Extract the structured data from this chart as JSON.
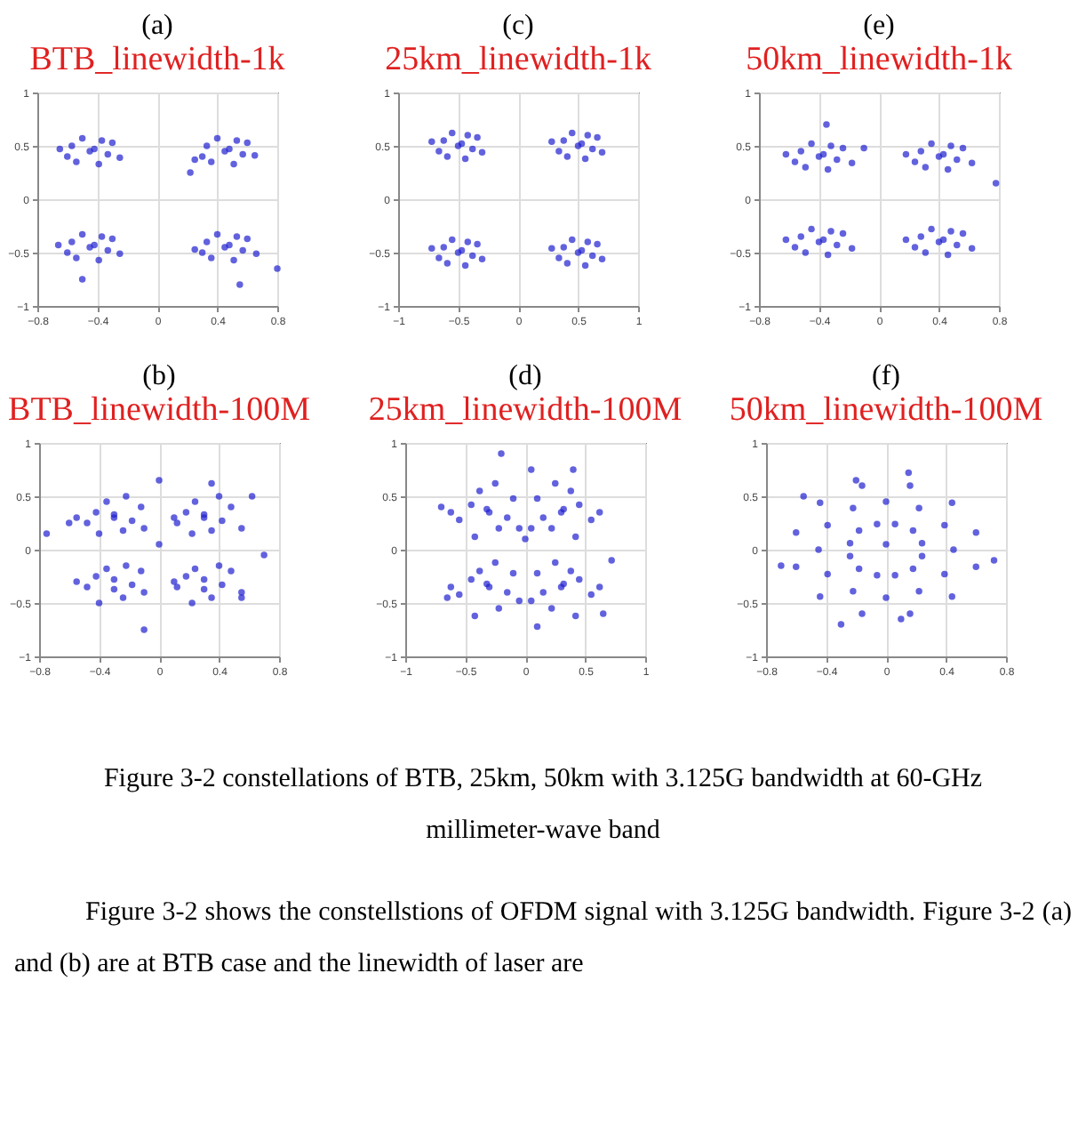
{
  "chart_data": [
    {
      "type": "scatter",
      "title": "(a)",
      "subtitle": "BTB_linewidth-1k",
      "color": "#1f1fd0",
      "marker": "circle",
      "grid": true,
      "xlim": [
        -0.8,
        0.8
      ],
      "ylim": [
        -1,
        1
      ],
      "xticks": [
        -0.8,
        -0.4,
        0,
        0.4,
        0.8
      ],
      "yticks": [
        -1,
        -0.5,
        0,
        0.5,
        1
      ],
      "x": [
        -0.45,
        -0.57,
        -0.33,
        -0.5,
        -0.39,
        -0.6,
        -0.3,
        -0.37,
        -0.54,
        -0.42,
        -0.65,
        -0.25,
        0.45,
        0.33,
        0.57,
        0.4,
        0.51,
        0.3,
        0.6,
        0.53,
        0.36,
        0.48,
        0.25,
        0.65,
        0.22,
        -0.45,
        -0.57,
        -0.33,
        -0.5,
        -0.39,
        -0.6,
        -0.3,
        -0.37,
        -0.54,
        -0.42,
        -0.66,
        -0.25,
        -0.5,
        0.45,
        0.33,
        0.57,
        0.4,
        0.51,
        0.3,
        0.6,
        0.53,
        0.36,
        0.48,
        0.25,
        0.66,
        0.55,
        0.8
      ],
      "values": [
        0.45,
        0.5,
        0.42,
        0.57,
        0.33,
        0.4,
        0.53,
        0.55,
        0.35,
        0.47,
        0.47,
        0.39,
        0.45,
        0.5,
        0.42,
        0.57,
        0.33,
        0.4,
        0.53,
        0.55,
        0.35,
        0.47,
        0.37,
        0.41,
        0.25,
        -0.45,
        -0.4,
        -0.48,
        -0.33,
        -0.57,
        -0.5,
        -0.37,
        -0.35,
        -0.55,
        -0.43,
        -0.43,
        -0.51,
        -0.75,
        -0.45,
        -0.4,
        -0.48,
        -0.33,
        -0.57,
        -0.5,
        -0.37,
        -0.35,
        -0.55,
        -0.43,
        -0.47,
        -0.51,
        -0.8,
        -0.65
      ],
      "annotations": [
        "Figure 3-2 constellations of BTB, 25km, 50km with 3.125G bandwidth at 60-GHz millimeter-wave band",
        "Figure 3-2 shows the constellstions of OFDM signal with 3.125G bandwidth. Figure 3-2 (a) and (b) are at BTB case and the linewidth of laser are"
      ]
    },
    {
      "type": "scatter",
      "title": "(c)",
      "subtitle": "25km_linewidth-1k",
      "color": "#1f1fd0",
      "marker": "circle",
      "grid": true,
      "xlim": [
        -1,
        1
      ],
      "ylim": [
        -1,
        1
      ],
      "xticks": [
        -1,
        -0.5,
        0,
        0.5,
        1
      ],
      "yticks": [
        -1,
        -0.5,
        0,
        0.5,
        1
      ],
      "x": [
        -0.5,
        -0.62,
        -0.38,
        -0.55,
        -0.44,
        -0.66,
        -0.34,
        -0.42,
        -0.59,
        -0.47,
        -0.72,
        -0.3,
        0.5,
        0.38,
        0.62,
        0.45,
        0.56,
        0.34,
        0.66,
        0.58,
        0.41,
        0.53,
        0.28,
        0.7,
        -0.5,
        -0.62,
        -0.38,
        -0.55,
        -0.44,
        -0.66,
        -0.34,
        -0.42,
        -0.59,
        -0.47,
        -0.72,
        -0.3,
        0.5,
        0.38,
        0.62,
        0.45,
        0.56,
        0.34,
        0.66,
        0.58,
        0.41,
        0.53,
        0.28,
        0.7
      ],
      "values": [
        0.5,
        0.55,
        0.47,
        0.62,
        0.38,
        0.45,
        0.58,
        0.6,
        0.4,
        0.52,
        0.54,
        0.44,
        0.5,
        0.55,
        0.47,
        0.62,
        0.38,
        0.45,
        0.58,
        0.6,
        0.4,
        0.52,
        0.54,
        0.44,
        -0.5,
        -0.45,
        -0.53,
        -0.38,
        -0.62,
        -0.55,
        -0.42,
        -0.4,
        -0.6,
        -0.48,
        -0.46,
        -0.56,
        -0.5,
        -0.45,
        -0.53,
        -0.38,
        -0.62,
        -0.55,
        -0.42,
        -0.4,
        -0.6,
        -0.48,
        -0.46,
        -0.56
      ]
    },
    {
      "type": "scatter",
      "title": "(e)",
      "subtitle": "50km_linewidth-1k",
      "color": "#1f1fd0",
      "marker": "circle",
      "grid": true,
      "xlim": [
        -0.8,
        0.8
      ],
      "ylim": [
        -1,
        1
      ],
      "xticks": [
        -0.8,
        -0.4,
        0,
        0.4,
        0.8
      ],
      "yticks": [
        -1,
        -0.5,
        0,
        0.5,
        1
      ],
      "x": [
        -0.4,
        -0.52,
        -0.28,
        -0.45,
        -0.34,
        -0.56,
        -0.24,
        -0.32,
        -0.49,
        -0.37,
        -0.62,
        -0.18,
        -0.1,
        -0.35,
        0.4,
        0.28,
        0.52,
        0.35,
        0.46,
        0.24,
        0.56,
        0.48,
        0.31,
        0.43,
        0.18,
        0.62,
        0.78,
        -0.4,
        -0.52,
        -0.28,
        -0.45,
        -0.34,
        -0.56,
        -0.24,
        -0.32,
        -0.49,
        -0.37,
        -0.62,
        -0.18,
        0.4,
        0.28,
        0.52,
        0.35,
        0.46,
        0.24,
        0.56,
        0.48,
        0.31,
        0.43,
        0.18,
        0.62
      ],
      "values": [
        0.4,
        0.45,
        0.37,
        0.52,
        0.28,
        0.35,
        0.48,
        0.5,
        0.3,
        0.42,
        0.42,
        0.34,
        0.48,
        0.7,
        0.4,
        0.45,
        0.37,
        0.52,
        0.28,
        0.35,
        0.48,
        0.5,
        0.3,
        0.42,
        0.42,
        0.34,
        0.15,
        -0.4,
        -0.35,
        -0.43,
        -0.28,
        -0.52,
        -0.45,
        -0.32,
        -0.3,
        -0.5,
        -0.38,
        -0.38,
        -0.46,
        -0.4,
        -0.35,
        -0.43,
        -0.28,
        -0.52,
        -0.45,
        -0.32,
        -0.3,
        -0.5,
        -0.38,
        -0.38,
        -0.46
      ]
    },
    {
      "type": "scatter",
      "title": "(b)",
      "subtitle": "BTB_linewidth-100M",
      "color": "#1f1fd0",
      "marker": "circle",
      "grid": true,
      "xlim": [
        -0.8,
        0.8
      ],
      "ylim": [
        -1,
        1
      ],
      "xticks": [
        -0.8,
        -0.4,
        0,
        0.4,
        0.8
      ],
      "yticks": [
        -1,
        -0.5,
        0,
        0.5,
        1
      ],
      "x": [
        -0.3,
        -0.42,
        -0.18,
        -0.35,
        -0.24,
        -0.48,
        -0.12,
        -0.22,
        -0.4,
        -0.3,
        -0.55,
        -0.1,
        0.3,
        0.18,
        0.42,
        0.24,
        0.35,
        0.12,
        0.48,
        0.4,
        0.22,
        0.3,
        0.1,
        0.55,
        -0.3,
        -0.42,
        -0.18,
        -0.35,
        -0.24,
        -0.48,
        -0.12,
        -0.22,
        -0.4,
        -0.3,
        -0.55,
        -0.1,
        0.3,
        0.18,
        0.42,
        0.24,
        0.35,
        0.12,
        0.48,
        0.4,
        0.22,
        0.3,
        0.1,
        0.55,
        0,
        0.35,
        -0.6,
        0.7,
        -0.1,
        0.55,
        -0.75,
        0,
        0.62
      ],
      "values": [
        0.3,
        0.35,
        0.27,
        0.45,
        0.18,
        0.25,
        0.4,
        0.5,
        0.15,
        0.33,
        0.3,
        0.2,
        0.3,
        0.35,
        0.27,
        0.45,
        0.18,
        0.25,
        0.4,
        0.5,
        0.15,
        0.33,
        0.3,
        0.2,
        -0.37,
        -0.25,
        -0.33,
        -0.18,
        -0.45,
        -0.35,
        -0.2,
        -0.15,
        -0.5,
        -0.28,
        -0.3,
        -0.4,
        -0.37,
        -0.25,
        -0.33,
        -0.18,
        -0.45,
        -0.35,
        -0.2,
        -0.15,
        -0.5,
        -0.28,
        -0.3,
        -0.4,
        0.65,
        0.62,
        0.25,
        -0.05,
        -0.75,
        -0.45,
        0.15,
        0.05,
        0.5
      ]
    },
    {
      "type": "scatter",
      "title": "(d)",
      "subtitle": "25km_linewidth-100M",
      "color": "#1f1fd0",
      "marker": "circle",
      "grid": true,
      "xlim": [
        -1,
        1
      ],
      "ylim": [
        -1,
        1
      ],
      "xticks": [
        -1,
        -0.5,
        0,
        0.5,
        1
      ],
      "yticks": [
        -1,
        -0.5,
        0,
        0.5,
        1
      ],
      "x": [
        -0.3,
        -0.45,
        -0.15,
        -0.38,
        -0.22,
        -0.55,
        -0.1,
        -0.25,
        -0.42,
        -0.32,
        -0.62,
        -0.05,
        0.3,
        0.45,
        0.15,
        0.38,
        0.22,
        0.55,
        0.1,
        0.25,
        0.42,
        0.32,
        0.62,
        0.05,
        -0.3,
        -0.45,
        -0.15,
        -0.38,
        -0.22,
        -0.55,
        -0.1,
        -0.25,
        -0.42,
        -0.32,
        -0.62,
        -0.05,
        0.3,
        0.45,
        0.15,
        0.38,
        0.22,
        0.55,
        0.1,
        0.25,
        0.42,
        0.32,
        0.62,
        0.05,
        -0.7,
        0.05,
        0.4,
        0.72,
        -0.65,
        0.1,
        0.65,
        -0.2,
        0
      ],
      "values": [
        0.35,
        0.42,
        0.3,
        0.55,
        0.2,
        0.28,
        0.48,
        0.62,
        0.12,
        0.38,
        0.35,
        0.2,
        0.35,
        0.42,
        0.3,
        0.55,
        0.2,
        0.28,
        0.48,
        0.62,
        0.12,
        0.38,
        0.35,
        0.2,
        -0.35,
        -0.28,
        -0.4,
        -0.2,
        -0.55,
        -0.42,
        -0.22,
        -0.12,
        -0.62,
        -0.32,
        -0.35,
        -0.48,
        -0.35,
        -0.28,
        -0.4,
        -0.2,
        -0.55,
        -0.42,
        -0.22,
        -0.12,
        -0.62,
        -0.32,
        -0.35,
        -0.48,
        0.4,
        0.75,
        0.75,
        -0.1,
        -0.45,
        -0.72,
        -0.6,
        0.9,
        0.1
      ]
    },
    {
      "type": "scatter",
      "title": "(f)",
      "subtitle": "50km_linewidth-100M",
      "color": "#1f1fd0",
      "marker": "circle",
      "grid": true,
      "xlim": [
        -0.8,
        0.8
      ],
      "ylim": [
        -1,
        1
      ],
      "xticks": [
        -0.8,
        -0.4,
        0,
        0.4,
        0.8
      ],
      "yticks": [
        -1,
        -0.5,
        0,
        0.5,
        1
      ],
      "x": [
        0.45,
        0.39,
        0.22,
        0,
        -0.22,
        -0.39,
        -0.45,
        -0.39,
        -0.22,
        0,
        0.22,
        0.39,
        0.24,
        0.18,
        0.06,
        -0.06,
        -0.18,
        -0.24,
        -0.24,
        -0.18,
        -0.06,
        0.06,
        0.18,
        0.24,
        0.6,
        0.44,
        0.16,
        -0.16,
        -0.44,
        -0.6,
        -0.6,
        -0.44,
        -0.16,
        0.16,
        0.44,
        0.6,
        -0.2,
        0.15,
        -0.7,
        0.72,
        -0.3,
        0.1,
        -0.55,
        0
      ],
      "values": [
        0,
        0.23,
        0.39,
        0.45,
        0.39,
        0.23,
        0,
        -0.23,
        -0.39,
        -0.45,
        -0.39,
        -0.23,
        0.06,
        0.18,
        0.24,
        0.24,
        0.18,
        0.06,
        -0.06,
        -0.18,
        -0.24,
        -0.24,
        -0.18,
        -0.06,
        0.16,
        0.44,
        0.6,
        0.6,
        0.44,
        0.16,
        -0.16,
        -0.44,
        -0.6,
        -0.6,
        -0.44,
        -0.16,
        0.65,
        0.72,
        -0.15,
        -0.1,
        -0.7,
        -0.65,
        0.5,
        0.05
      ]
    }
  ]
}
